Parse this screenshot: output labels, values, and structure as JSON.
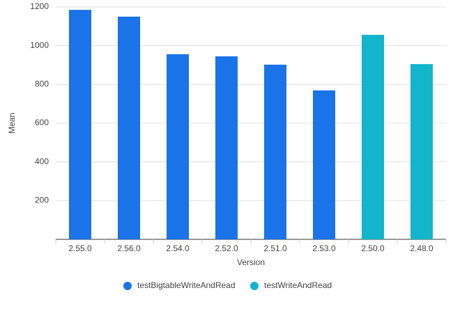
{
  "chart_data": {
    "type": "bar",
    "categories": [
      "2.55.0",
      "2.56.0",
      "2.54.0",
      "2.52.0",
      "2.51.0",
      "2.53.0",
      "2.50.0",
      "2.48.0"
    ],
    "series": [
      {
        "name": "testBigtableWriteAndRead",
        "color": "#1a73e8",
        "values": [
          1185,
          1150,
          956,
          945,
          902,
          769,
          null,
          null
        ]
      },
      {
        "name": "testWriteAndRead",
        "color": "#12b5cb",
        "values": [
          null,
          null,
          null,
          null,
          null,
          null,
          1056,
          905
        ]
      }
    ],
    "x_label": "Version",
    "y_label": "Mean",
    "ylim": [
      0,
      1200
    ],
    "yticks": [
      200,
      400,
      600,
      800,
      1000,
      1200
    ],
    "grid": true
  }
}
